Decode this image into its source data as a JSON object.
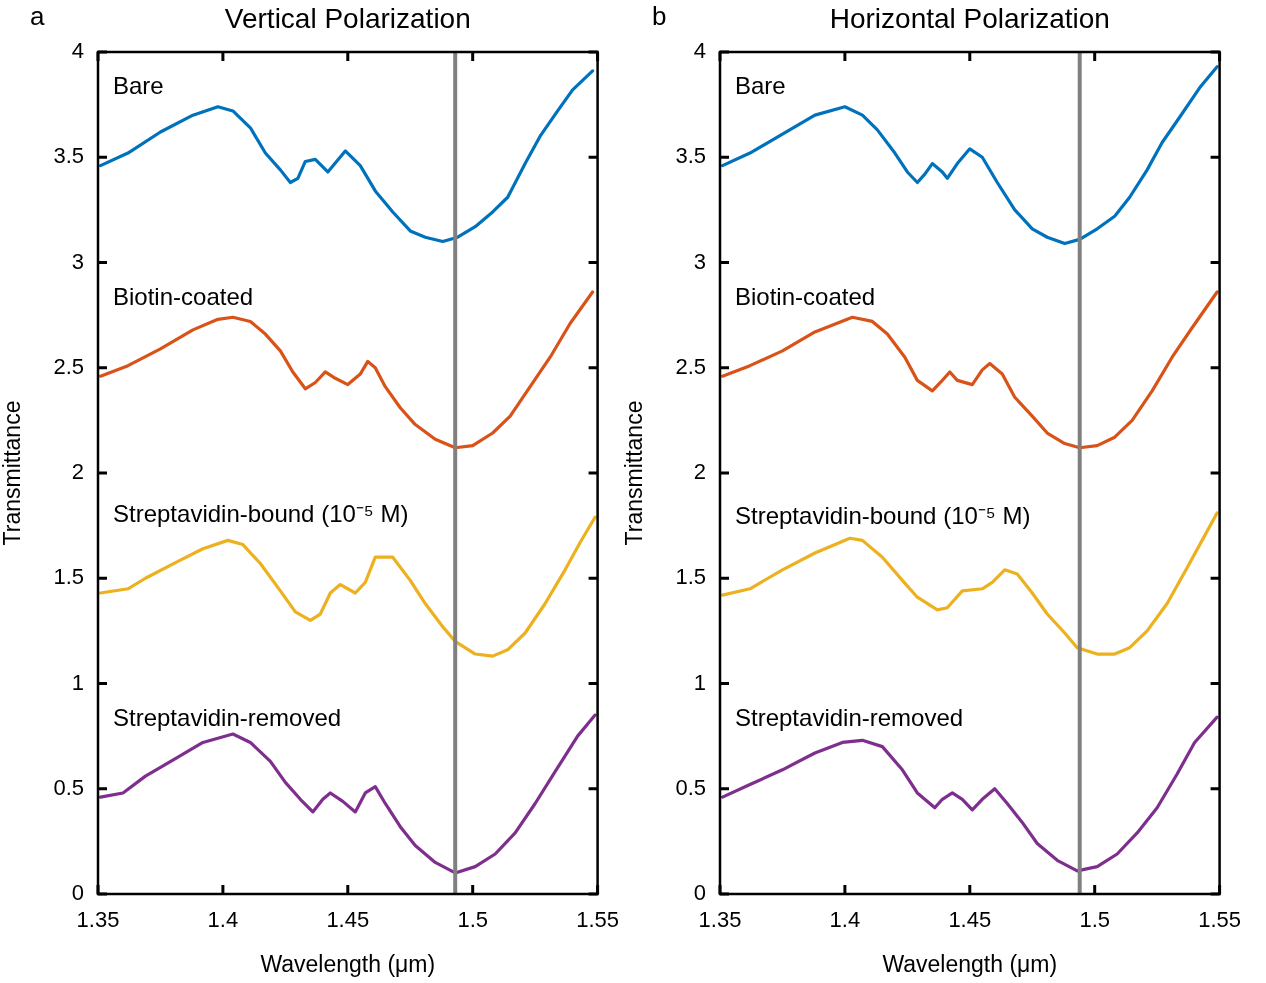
{
  "chart_data": [
    {
      "type": "line",
      "title": "Vertical Polarization",
      "xlabel": "Wavelength (μm)",
      "ylabel": "Transmittance",
      "annotations": [
        "a"
      ],
      "xlim": [
        1.35,
        1.55
      ],
      "ylim": [
        0,
        4
      ],
      "xticks": [
        1.35,
        1.4,
        1.45,
        1.5,
        1.55
      ],
      "yticks": [
        0,
        0.5,
        1,
        1.5,
        2,
        2.5,
        3,
        3.5,
        4
      ],
      "marker": "none",
      "line_style": "solid",
      "ref_lines": [
        {
          "axis": "x",
          "value": 1.493,
          "color": "#808080"
        }
      ],
      "series": [
        {
          "name": "Bare",
          "color": "#0072bd",
          "x": [
            1.351,
            1.362,
            1.375,
            1.388,
            1.398,
            1.404,
            1.411,
            1.417,
            1.423,
            1.427,
            1.43,
            1.433,
            1.437,
            1.442,
            1.449,
            1.455,
            1.461,
            1.468,
            1.475,
            1.481,
            1.488,
            1.494,
            1.501,
            1.508,
            1.514,
            1.521,
            1.527,
            1.534,
            1.54,
            1.548
          ],
          "values": [
            3.46,
            3.52,
            3.62,
            3.7,
            3.74,
            3.72,
            3.64,
            3.52,
            3.44,
            3.38,
            3.4,
            3.48,
            3.49,
            3.43,
            3.53,
            3.46,
            3.34,
            3.24,
            3.15,
            3.12,
            3.1,
            3.12,
            3.17,
            3.24,
            3.31,
            3.47,
            3.6,
            3.72,
            3.82,
            3.91
          ]
        },
        {
          "name": "Biotin-coated",
          "color": "#d95319",
          "x": [
            1.351,
            1.362,
            1.375,
            1.388,
            1.398,
            1.404,
            1.411,
            1.417,
            1.423,
            1.428,
            1.433,
            1.437,
            1.441,
            1.445,
            1.45,
            1.455,
            1.458,
            1.461,
            1.465,
            1.471,
            1.477,
            1.485,
            1.493,
            1.5,
            1.508,
            1.515,
            1.523,
            1.531,
            1.539,
            1.548
          ],
          "values": [
            2.46,
            2.51,
            2.59,
            2.68,
            2.73,
            2.74,
            2.72,
            2.66,
            2.58,
            2.48,
            2.4,
            2.43,
            2.48,
            2.45,
            2.42,
            2.47,
            2.53,
            2.5,
            2.41,
            2.31,
            2.23,
            2.16,
            2.12,
            2.13,
            2.19,
            2.27,
            2.41,
            2.55,
            2.71,
            2.86
          ]
        },
        {
          "name": "Streptavidin-bound (10⁻⁵ M)",
          "color": "#edb120",
          "x": [
            1.351,
            1.362,
            1.369,
            1.382,
            1.392,
            1.402,
            1.408,
            1.415,
            1.423,
            1.429,
            1.435,
            1.439,
            1.443,
            1.447,
            1.453,
            1.457,
            1.461,
            1.468,
            1.475,
            1.481,
            1.488,
            1.493,
            1.501,
            1.508,
            1.514,
            1.521,
            1.529,
            1.537,
            1.543,
            1.549
          ],
          "values": [
            1.43,
            1.45,
            1.5,
            1.58,
            1.64,
            1.68,
            1.66,
            1.57,
            1.44,
            1.34,
            1.3,
            1.33,
            1.43,
            1.47,
            1.43,
            1.48,
            1.6,
            1.6,
            1.49,
            1.38,
            1.27,
            1.2,
            1.14,
            1.13,
            1.16,
            1.24,
            1.38,
            1.54,
            1.67,
            1.79
          ]
        },
        {
          "name": "Streptavidin-removed",
          "color": "#7e2f8e",
          "x": [
            1.351,
            1.36,
            1.369,
            1.382,
            1.392,
            1.404,
            1.411,
            1.419,
            1.425,
            1.431,
            1.436,
            1.44,
            1.443,
            1.448,
            1.453,
            1.457,
            1.461,
            1.465,
            1.471,
            1.477,
            1.485,
            1.493,
            1.501,
            1.509,
            1.517,
            1.525,
            1.534,
            1.542,
            1.549
          ],
          "values": [
            0.46,
            0.48,
            0.56,
            0.65,
            0.72,
            0.76,
            0.72,
            0.63,
            0.53,
            0.45,
            0.39,
            0.45,
            0.48,
            0.44,
            0.39,
            0.48,
            0.51,
            0.43,
            0.32,
            0.23,
            0.15,
            0.1,
            0.13,
            0.19,
            0.29,
            0.43,
            0.6,
            0.75,
            0.85
          ]
        }
      ]
    },
    {
      "type": "line",
      "title": "Horizontal Polarization",
      "xlabel": "Wavelength (μm)",
      "ylabel": "Transmittance",
      "annotations": [
        "b"
      ],
      "xlim": [
        1.35,
        1.55
      ],
      "ylim": [
        0,
        4
      ],
      "xticks": [
        1.35,
        1.4,
        1.45,
        1.5,
        1.55
      ],
      "yticks": [
        0,
        0.5,
        1,
        1.5,
        2,
        2.5,
        3,
        3.5,
        4
      ],
      "marker": "none",
      "line_style": "solid",
      "ref_lines": [
        {
          "axis": "x",
          "value": 1.494,
          "color": "#808080"
        }
      ],
      "series": [
        {
          "name": "Bare",
          "color": "#0072bd",
          "x": [
            1.351,
            1.362,
            1.375,
            1.388,
            1.4,
            1.407,
            1.413,
            1.42,
            1.425,
            1.429,
            1.432,
            1.435,
            1.439,
            1.441,
            1.445,
            1.45,
            1.455,
            1.461,
            1.468,
            1.475,
            1.481,
            1.488,
            1.494,
            1.501,
            1.508,
            1.514,
            1.521,
            1.527,
            1.534,
            1.542,
            1.549
          ],
          "values": [
            3.46,
            3.52,
            3.61,
            3.7,
            3.74,
            3.7,
            3.63,
            3.52,
            3.43,
            3.38,
            3.42,
            3.47,
            3.43,
            3.4,
            3.47,
            3.54,
            3.5,
            3.38,
            3.25,
            3.16,
            3.12,
            3.09,
            3.11,
            3.16,
            3.22,
            3.31,
            3.44,
            3.57,
            3.69,
            3.83,
            3.93
          ]
        },
        {
          "name": "Biotin-coated",
          "color": "#d95319",
          "x": [
            1.351,
            1.362,
            1.375,
            1.388,
            1.403,
            1.411,
            1.417,
            1.424,
            1.429,
            1.435,
            1.439,
            1.442,
            1.445,
            1.451,
            1.455,
            1.458,
            1.463,
            1.468,
            1.475,
            1.481,
            1.488,
            1.494,
            1.501,
            1.508,
            1.515,
            1.523,
            1.531,
            1.539,
            1.549
          ],
          "values": [
            2.46,
            2.51,
            2.58,
            2.67,
            2.74,
            2.72,
            2.66,
            2.55,
            2.44,
            2.39,
            2.44,
            2.48,
            2.44,
            2.42,
            2.49,
            2.52,
            2.47,
            2.36,
            2.27,
            2.19,
            2.14,
            2.12,
            2.13,
            2.17,
            2.25,
            2.39,
            2.55,
            2.69,
            2.86
          ]
        },
        {
          "name": "Streptavidin-bound (10⁻⁵ M)",
          "color": "#edb120",
          "x": [
            1.351,
            1.362,
            1.375,
            1.388,
            1.402,
            1.407,
            1.415,
            1.423,
            1.429,
            1.437,
            1.441,
            1.447,
            1.455,
            1.459,
            1.464,
            1.469,
            1.475,
            1.481,
            1.488,
            1.493,
            1.501,
            1.508,
            1.514,
            1.521,
            1.529,
            1.537,
            1.543,
            1.549
          ],
          "values": [
            1.42,
            1.45,
            1.54,
            1.62,
            1.69,
            1.68,
            1.6,
            1.49,
            1.41,
            1.35,
            1.36,
            1.44,
            1.45,
            1.48,
            1.54,
            1.52,
            1.43,
            1.33,
            1.24,
            1.17,
            1.14,
            1.14,
            1.17,
            1.25,
            1.38,
            1.55,
            1.68,
            1.81
          ]
        },
        {
          "name": "Streptavidin-removed",
          "color": "#7e2f8e",
          "x": [
            1.351,
            1.362,
            1.375,
            1.388,
            1.399,
            1.407,
            1.415,
            1.423,
            1.429,
            1.436,
            1.439,
            1.443,
            1.447,
            1.451,
            1.455,
            1.46,
            1.465,
            1.471,
            1.477,
            1.485,
            1.493,
            1.501,
            1.509,
            1.517,
            1.525,
            1.533,
            1.54,
            1.549
          ],
          "values": [
            0.46,
            0.52,
            0.59,
            0.67,
            0.72,
            0.73,
            0.7,
            0.59,
            0.48,
            0.41,
            0.45,
            0.48,
            0.45,
            0.4,
            0.45,
            0.5,
            0.43,
            0.34,
            0.24,
            0.16,
            0.11,
            0.13,
            0.19,
            0.29,
            0.41,
            0.57,
            0.72,
            0.84
          ]
        }
      ]
    }
  ]
}
